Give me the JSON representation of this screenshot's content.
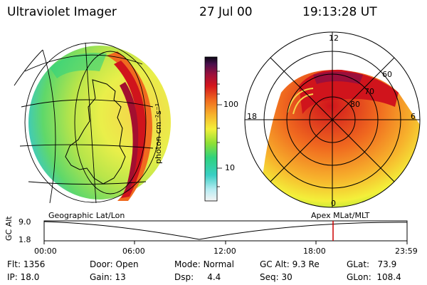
{
  "header": {
    "instrument": "Ultraviolet Imager",
    "date": "27 Jul 00",
    "time": "19:13:28 UT"
  },
  "colorbar": {
    "unit_label": "photon cm⁻²s⁻¹",
    "ticks": [
      "100",
      "10"
    ]
  },
  "left_panel": {
    "caption": "Geographic Lat/Lon"
  },
  "right_panel": {
    "caption": "Apex MLat/MLT",
    "mlt_labels": {
      "top": "12",
      "left": "18",
      "right": "6",
      "bottom": "0"
    },
    "lat_labels": [
      "60",
      "70",
      "80"
    ]
  },
  "altitude_strip": {
    "ylabel": "GC Alt",
    "ytick_top": "9.0",
    "ytick_bottom": "1.8",
    "time_ticks": [
      "00:00",
      "06:00",
      "12:00",
      "18:00",
      "23:59"
    ]
  },
  "info": {
    "flt": {
      "label": "Flt:",
      "value": "1356"
    },
    "ip": {
      "label": "IP:",
      "value": "18.0"
    },
    "door": {
      "label": "Door:",
      "value": "Open"
    },
    "gain": {
      "label": "Gain:",
      "value": "13"
    },
    "mode": {
      "label": "Mode:",
      "value": "Normal"
    },
    "dsp": {
      "label": "Dsp:",
      "value": "4.4"
    },
    "gcalt": {
      "label": "GC Alt:",
      "value": "9.3 Re"
    },
    "seq": {
      "label": "Seq:",
      "value": "30"
    },
    "glat": {
      "label": "GLat:",
      "value": "73.9"
    },
    "glon": {
      "label": "GLon:",
      "value": "108.4"
    }
  },
  "colors": {
    "background": "#ffffff",
    "ring_red": "#d0141c",
    "marker_red": "#cc0000",
    "grid": "#000000"
  }
}
